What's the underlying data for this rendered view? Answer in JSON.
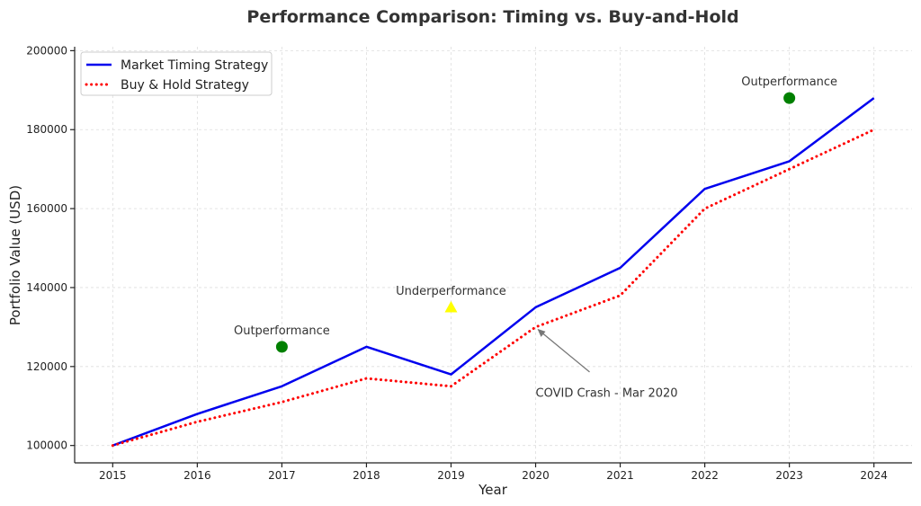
{
  "chart_data": {
    "type": "line",
    "title": "Performance Comparison: Timing vs. Buy-and-Hold",
    "xlabel": "Year",
    "ylabel": "Portfolio Value (USD)",
    "x": [
      2015,
      2016,
      2017,
      2018,
      2019,
      2020,
      2021,
      2022,
      2023,
      2024
    ],
    "xlim": [
      2014.55,
      2024.45
    ],
    "ylim": [
      95600,
      201000
    ],
    "yticks": [
      100000,
      120000,
      140000,
      160000,
      180000,
      200000
    ],
    "grid": true,
    "legend_position": "top-left",
    "series": [
      {
        "name": "Market Timing Strategy",
        "color": "#0000ee",
        "style": "solid",
        "values": [
          100000,
          108000,
          115000,
          125000,
          118000,
          135000,
          145000,
          165000,
          172000,
          188000
        ]
      },
      {
        "name": "Buy & Hold Strategy",
        "color": "#ff0000",
        "style": "dotted",
        "values": [
          100000,
          106000,
          111000,
          117000,
          115000,
          130000,
          138000,
          160000,
          170000,
          180000
        ]
      }
    ],
    "markers": [
      {
        "label": "Outperformance",
        "x": 2017,
        "y": 125000,
        "shape": "circle",
        "color": "#008000"
      },
      {
        "label": "Underperformance",
        "x": 2019,
        "y": 135000,
        "shape": "triangle",
        "color": "#ffff00"
      },
      {
        "label": "Outperformance",
        "x": 2023,
        "y": 188000,
        "shape": "circle",
        "color": "#008000"
      }
    ],
    "arrow_annotation": {
      "text": "COVID Crash - Mar 2020",
      "x": 2020,
      "y": 130000,
      "text_x": 2020.65,
      "text_y": 115500
    }
  }
}
